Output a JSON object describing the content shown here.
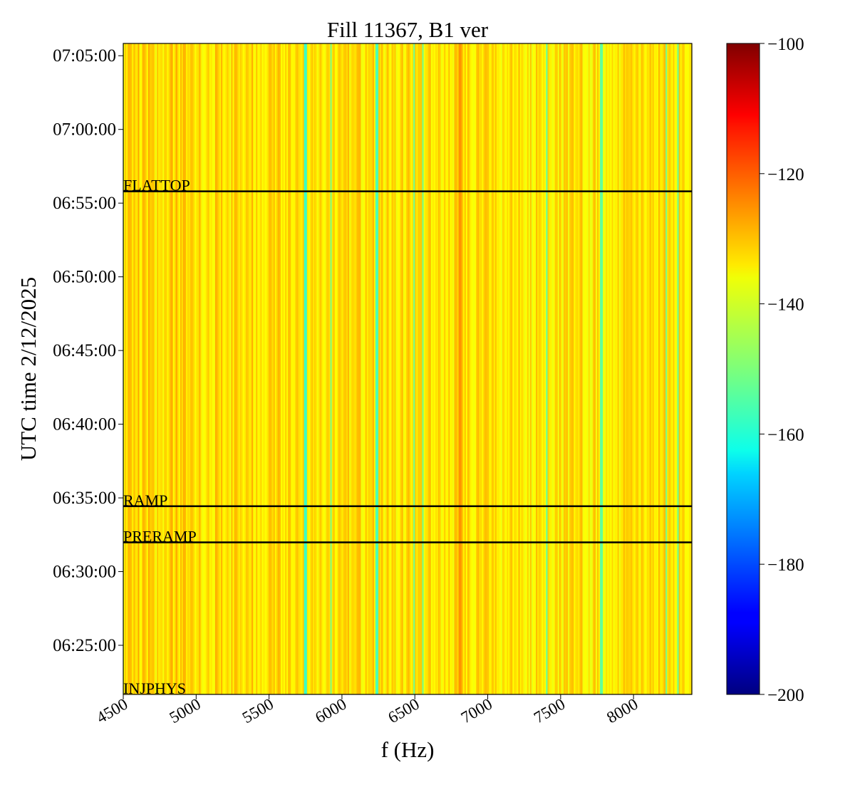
{
  "chart_data": {
    "type": "heatmap",
    "title": "Fill 11367, B1 ver",
    "xlabel": "f (Hz)",
    "ylabel": "UTC time 2/12/2025",
    "x_range": [
      4500,
      8400
    ],
    "x_ticks": [
      4500,
      5000,
      5500,
      6000,
      6500,
      7000,
      7500,
      8000
    ],
    "x_tick_labels": [
      "4500",
      "5000",
      "5500",
      "6000",
      "6500",
      "7000",
      "7500",
      "8000"
    ],
    "y_range": [
      "06:21:40",
      "07:05:50"
    ],
    "y_ticks": [
      "06:25:00",
      "06:30:00",
      "06:35:00",
      "06:40:00",
      "06:45:00",
      "06:50:00",
      "06:55:00",
      "07:00:00",
      "07:05:00"
    ],
    "colorbar": {
      "range": [
        -200,
        -100
      ],
      "ticks": [
        -100,
        -120,
        -140,
        -160,
        -180,
        -200
      ],
      "tick_labels": [
        "−100",
        "−120",
        "−140",
        "−160",
        "−180",
        "−200"
      ],
      "colormap": "jet"
    },
    "annotations": [
      {
        "label": "FLATTOP",
        "time": "06:55:48"
      },
      {
        "label": "RAMP",
        "time": "06:34:26"
      },
      {
        "label": "PRERAMP",
        "time": "06:31:59"
      },
      {
        "label": "INJPHYS",
        "time": "06:21:40"
      }
    ],
    "typical_value": -135,
    "highlight_values": [
      {
        "f": 5750,
        "value": -157
      },
      {
        "f": 6240,
        "value": -155
      },
      {
        "f": 6810,
        "value": -127
      },
      {
        "f": 7780,
        "value": -153
      }
    ]
  }
}
